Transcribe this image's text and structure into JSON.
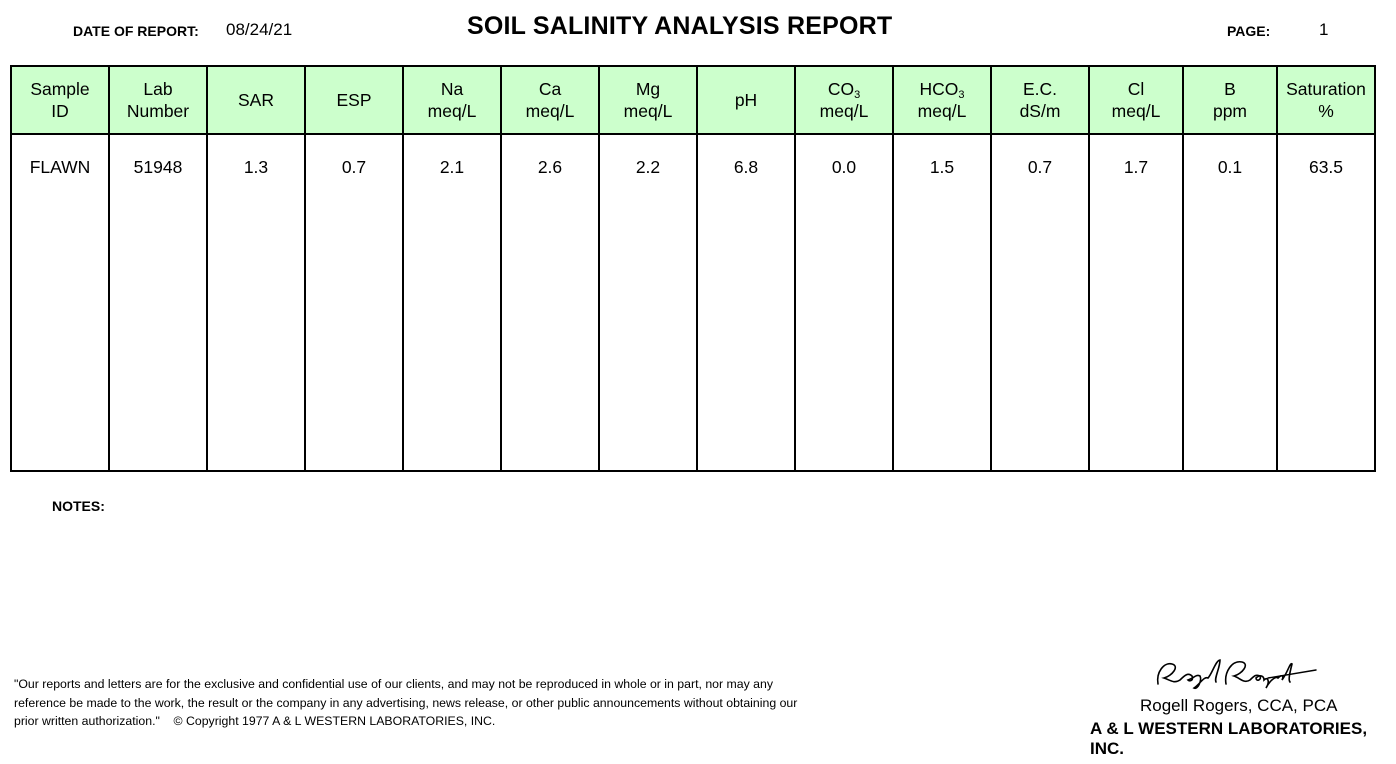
{
  "header": {
    "date_label": "DATE OF REPORT:",
    "date_value": "08/24/21",
    "title": "SOIL SALINITY ANALYSIS REPORT",
    "page_label": "PAGE:",
    "page_value": "1"
  },
  "table": {
    "header_bg": "#ccffcc",
    "columns": [
      {
        "line1": "Sample",
        "line2": "ID"
      },
      {
        "line1": "Lab",
        "line2": "Number"
      },
      {
        "line1": "SAR",
        "line2": ""
      },
      {
        "line1": "ESP",
        "line2": ""
      },
      {
        "line1": "Na",
        "line2": "meq/L"
      },
      {
        "line1": "Ca",
        "line2": "meq/L"
      },
      {
        "line1": "Mg",
        "line2": "meq/L"
      },
      {
        "line1": "pH",
        "line2": ""
      },
      {
        "line1": "CO",
        "sub": "3",
        "line2": "meq/L"
      },
      {
        "line1": "HCO",
        "sub": "3",
        "line2": "meq/L"
      },
      {
        "line1": "E.C.",
        "line2": "dS/m"
      },
      {
        "line1": "Cl",
        "line2": "meq/L"
      },
      {
        "line1": "B",
        "line2": "ppm"
      },
      {
        "line1": "Saturation",
        "line2": "%"
      }
    ],
    "rows": [
      [
        "FLAWN",
        "51948",
        "1.3",
        "0.7",
        "2.1",
        "2.6",
        "2.2",
        "6.8",
        "0.0",
        "1.5",
        "0.7",
        "1.7",
        "0.1",
        "63.5"
      ]
    ]
  },
  "notes": {
    "label": "NOTES:"
  },
  "footer": {
    "disclaimer_line1": "\"Our reports and letters are for the exclusive and confidential use of our clients, and may not be reproduced in whole or in part, nor may any",
    "disclaimer_line2": "reference be made to the work, the result or the company in any advertising, news release, or other public announcements without obtaining our",
    "disclaimer_line3": "prior written authorization.\"    © Copyright 1977 A & L WESTERN LABORATORIES, INC.",
    "signature_text": "Rogell Rogers",
    "signer": "Rogell Rogers, CCA, PCA",
    "company": "A & L WESTERN LABORATORIES, INC."
  }
}
